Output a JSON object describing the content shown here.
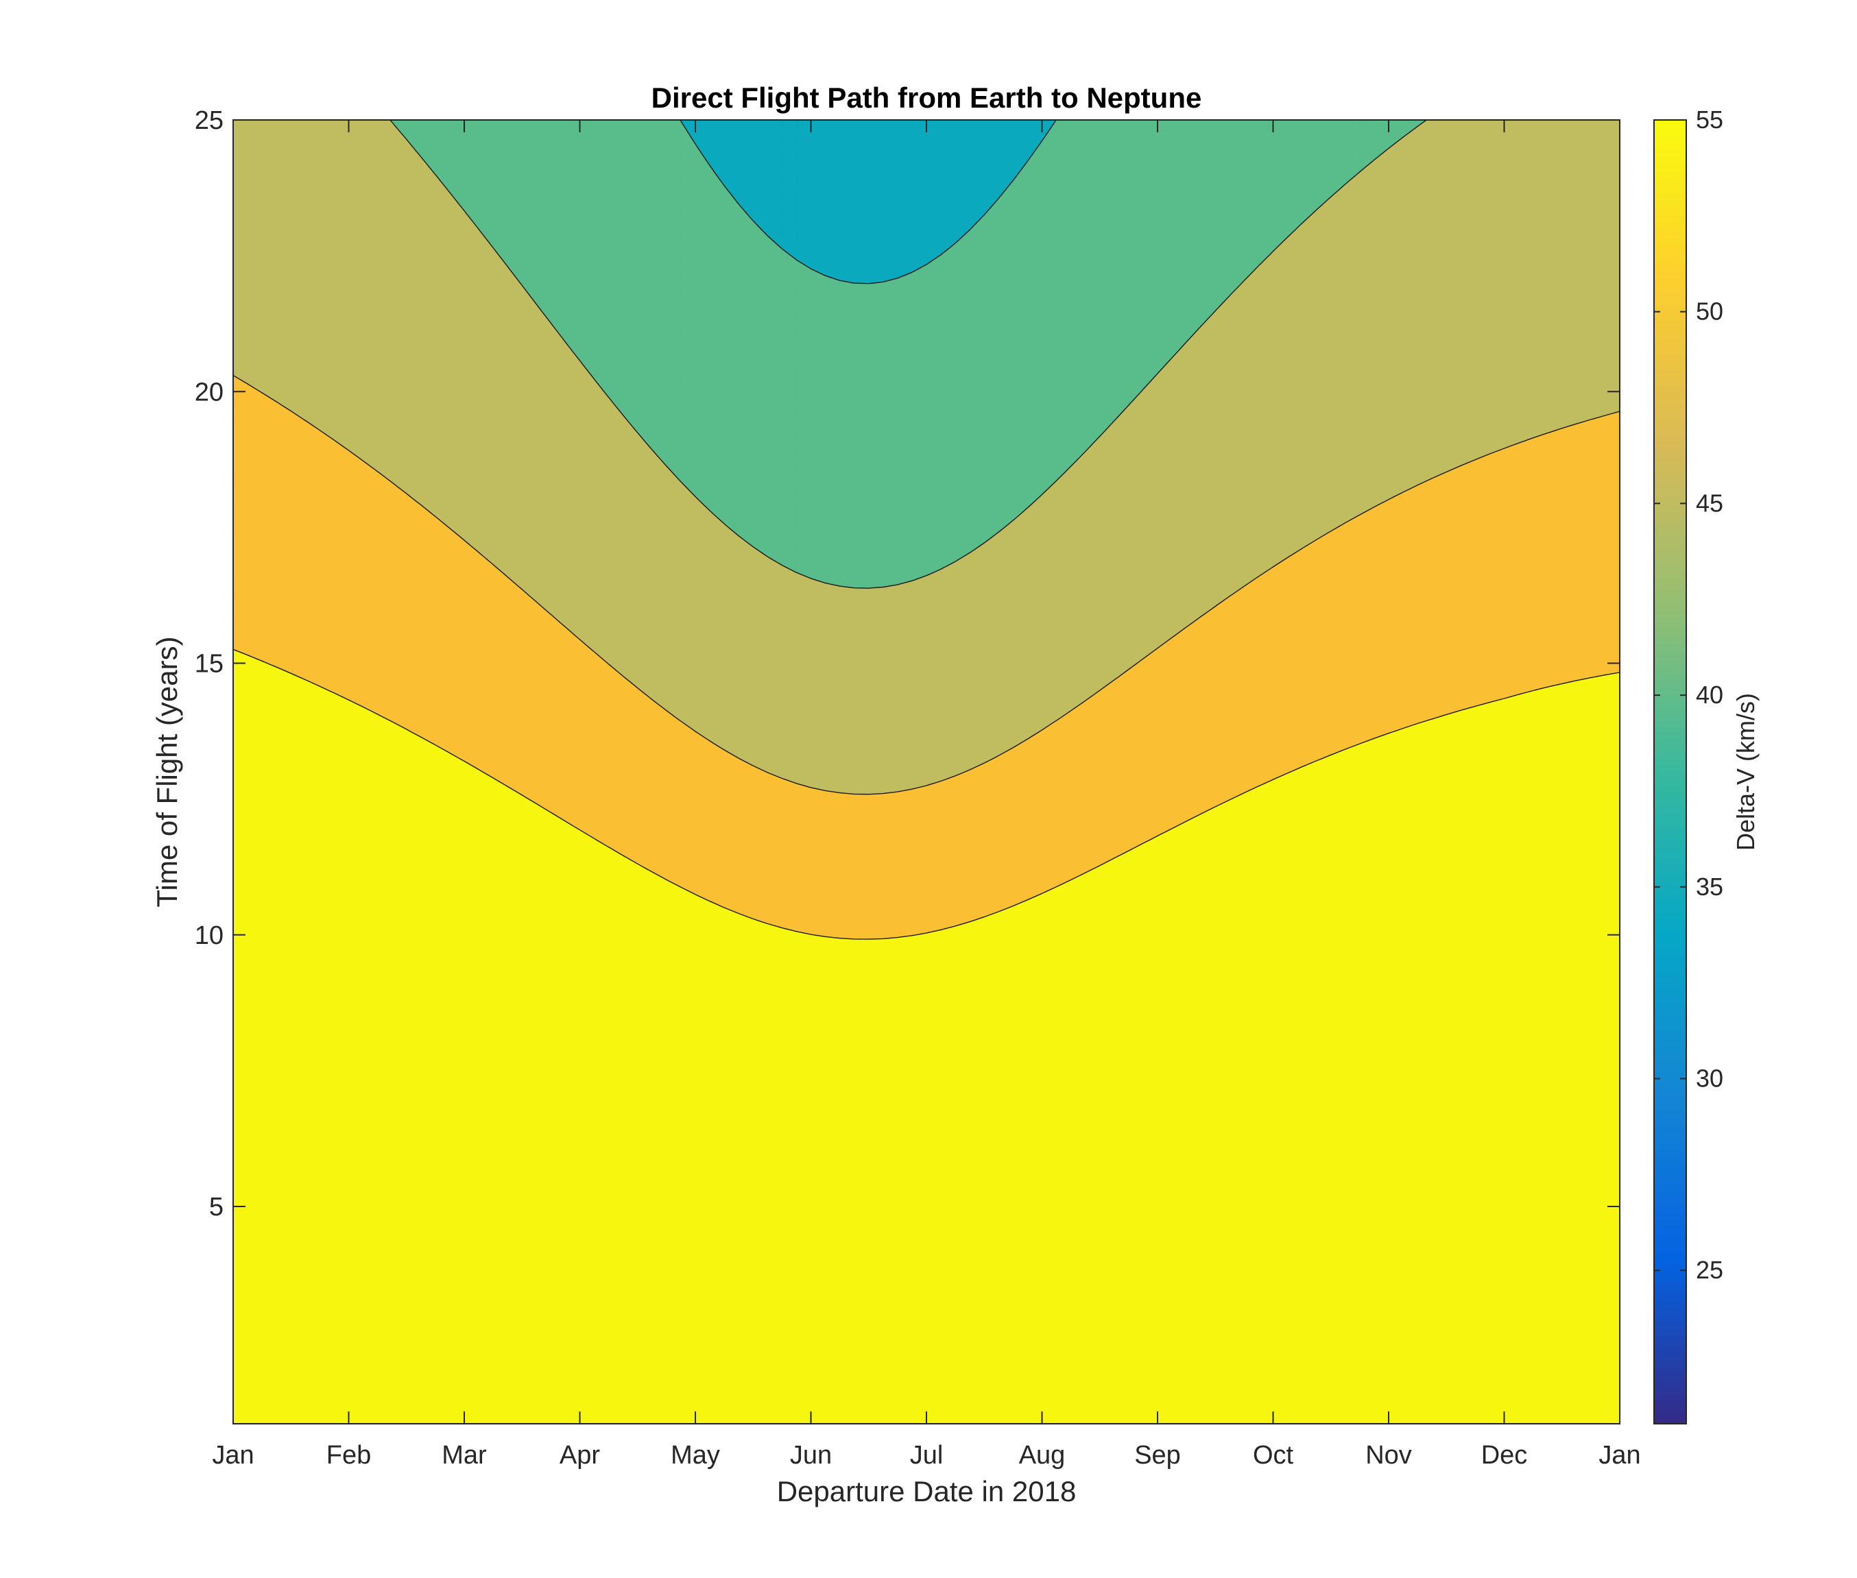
{
  "chart_data": {
    "type": "contour",
    "title": "Direct Flight Path from Earth to Neptune",
    "xlabel": "Departure Date in 2018",
    "ylabel": "Time of Flight (years)",
    "x_ticks": [
      "Jan",
      "Feb",
      "Mar",
      "Apr",
      "May",
      "Jun",
      "Jul",
      "Aug",
      "Sep",
      "Oct",
      "Nov",
      "Dec",
      "Jan"
    ],
    "x_range_months": [
      0,
      12
    ],
    "y_ticks": [
      5,
      10,
      15,
      20,
      25
    ],
    "ylim": [
      1.0,
      25
    ],
    "colorbar": {
      "label": "Delta-V (km/s)",
      "ticks": [
        25,
        30,
        35,
        40,
        45,
        50,
        55
      ],
      "range": [
        21,
        55
      ]
    },
    "levels": [
      25,
      30,
      35,
      40,
      45,
      50,
      55
    ],
    "band_colors": [
      "#352a86",
      "#105bdc",
      "#1887cc",
      "#0aa9bd",
      "#59bd8b",
      "#c0bc60",
      "#fbbf33",
      "#f6f60f"
    ],
    "colormap": [
      "#352a87",
      "#0363e1",
      "#1485d4",
      "#06a7c6",
      "#38b99e",
      "#92bf73",
      "#d9ba56",
      "#fcce2e",
      "#f9fb0e"
    ],
    "grid": false,
    "legend": "colorbar-right"
  }
}
